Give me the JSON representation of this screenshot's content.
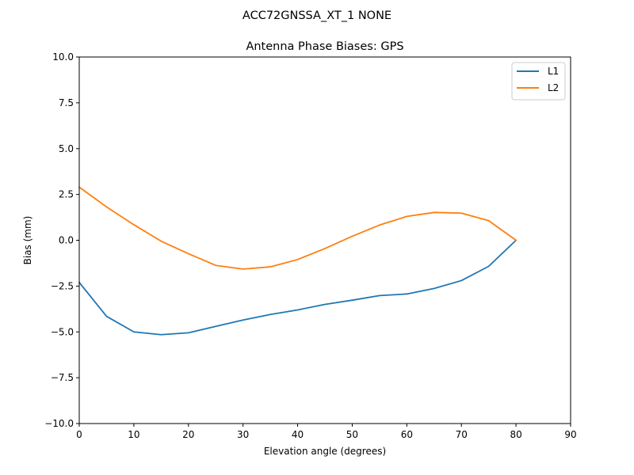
{
  "figure": {
    "suptitle": "ACC72GNSSA_XT_1 NONE"
  },
  "chart_data": {
    "type": "line",
    "title": "Antenna Phase Biases: GPS",
    "xlabel": "Elevation angle (degrees)",
    "ylabel": "Bias (mm)",
    "xlim": [
      0,
      90
    ],
    "ylim": [
      -10,
      10
    ],
    "xticks": [
      0,
      10,
      20,
      30,
      40,
      50,
      60,
      70,
      80,
      90
    ],
    "xtick_labels": [
      "0",
      "10",
      "20",
      "30",
      "40",
      "50",
      "60",
      "70",
      "80",
      "90"
    ],
    "yticks": [
      -10,
      -7.5,
      -5,
      -2.5,
      0,
      2.5,
      5,
      7.5,
      10
    ],
    "ytick_labels": [
      "−10.0",
      "−7.5",
      "−5.0",
      "−2.5",
      "0.0",
      "2.5",
      "5.0",
      "7.5",
      "10.0"
    ],
    "grid": false,
    "legend": {
      "position": "top-right"
    },
    "x": [
      0,
      5,
      10,
      15,
      20,
      25,
      30,
      35,
      40,
      45,
      50,
      55,
      60,
      65,
      70,
      75,
      80
    ],
    "series": [
      {
        "name": "L1",
        "color": "#1f77b4",
        "values": [
          -2.3,
          -4.15,
          -5.0,
          -5.15,
          -5.05,
          -4.7,
          -4.35,
          -4.05,
          -3.8,
          -3.5,
          -3.27,
          -3.02,
          -2.93,
          -2.63,
          -2.2,
          -1.42,
          0.0
        ]
      },
      {
        "name": "L2",
        "color": "#ff7f0e",
        "values": [
          2.9,
          1.82,
          0.85,
          -0.05,
          -0.73,
          -1.37,
          -1.57,
          -1.45,
          -1.05,
          -0.45,
          0.22,
          0.83,
          1.3,
          1.52,
          1.48,
          1.07,
          0.0
        ]
      }
    ]
  }
}
